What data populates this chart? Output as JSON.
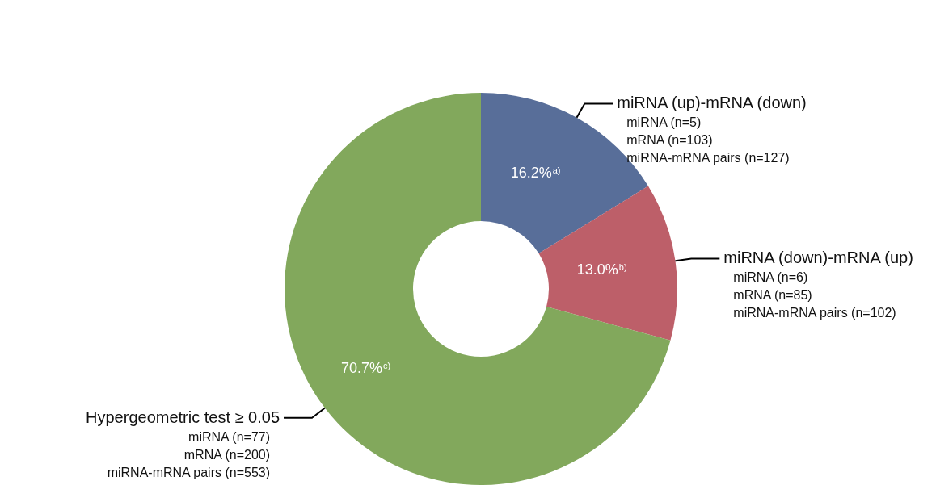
{
  "chart_data": {
    "type": "donut",
    "categories": [
      "miRNA (up)-mRNA (down)",
      "miRNA (down)-mRNA (up)",
      "Hypergeometric test ≥ 0.05"
    ],
    "values": [
      16.2,
      13.0,
      70.7
    ],
    "colors": [
      "#586e99",
      "#bd5f69",
      "#82a85c"
    ],
    "value_labels": [
      "16.2%$^{a)}$",
      "13.0%$^{b)}$",
      "70.7%$^{c)}$"
    ],
    "annotations": [
      "miRNA (n=5)",
      "mRNA (n=103)",
      "miRNA-mRNA pairs (n=127)",
      "miRNA (n=6)",
      "mRNA (n=85)",
      "miRNA-mRNA pairs (n=102)",
      "miRNA (n=77)",
      "mRNA (n=200)",
      "miRNA-mRNA pairs (n=553)"
    ]
  }
}
